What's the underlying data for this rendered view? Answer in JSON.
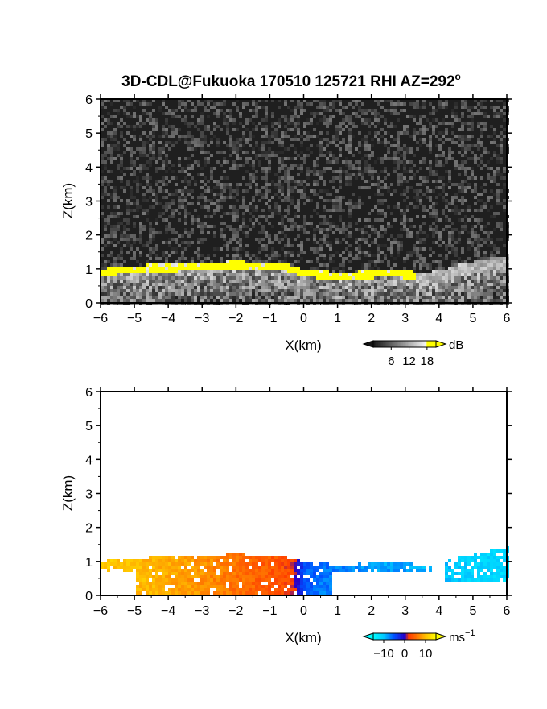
{
  "title_main": "3D-CDL@Fukuoka 170510 125721 RHI AZ=292",
  "title_sup": "o",
  "colors": {
    "background": "#1f1f1f",
    "yellow": "#ffff00",
    "axis": "#000000"
  },
  "chart_data": [
    {
      "type": "heatmap",
      "panel": "snr",
      "xlabel": "X(km)",
      "ylabel": "Z(km)",
      "xlim": [
        -6,
        6
      ],
      "ylim": [
        0,
        6
      ],
      "xticks": [
        "−6",
        "−5",
        "−4",
        "−3",
        "−2",
        "−1",
        "0",
        "1",
        "2",
        "3",
        "4",
        "5",
        "6"
      ],
      "yticks": [
        "0",
        "1",
        "2",
        "3",
        "4",
        "5",
        "6"
      ],
      "grid": false,
      "colorbar": {
        "unit": "dB",
        "ticks": [
          "6",
          "12",
          "18"
        ],
        "tick_values": [
          6,
          12,
          18
        ],
        "range": [
          0,
          21
        ]
      },
      "layer_top_km": {
        "x": [
          -6,
          -5.5,
          -5,
          -4.5,
          -4,
          -3.5,
          -3,
          -2.5,
          -2,
          -1.5,
          -1,
          -0.5,
          0,
          0.5,
          1,
          1.5,
          2,
          2.5,
          3,
          3.5,
          4,
          4.5,
          5,
          5.5,
          6
        ],
        "z": [
          1.0,
          1.05,
          1.1,
          1.12,
          1.12,
          1.15,
          1.18,
          1.2,
          1.22,
          1.2,
          1.18,
          1.15,
          0.98,
          0.95,
          0.9,
          0.92,
          0.95,
          0.98,
          0.95,
          0.88,
          0.95,
          1.1,
          1.2,
          1.3,
          1.4
        ]
      }
    },
    {
      "type": "heatmap",
      "panel": "doppler_velocity",
      "xlabel": "X(km)",
      "ylabel": "Z(km)",
      "xlim": [
        -6,
        6
      ],
      "ylim": [
        0,
        6
      ],
      "xticks": [
        "−6",
        "−5",
        "−4",
        "−3",
        "−2",
        "−1",
        "0",
        "1",
        "2",
        "3",
        "4",
        "5",
        "6"
      ],
      "yticks": [
        "0",
        "1",
        "2",
        "3",
        "4",
        "5",
        "6"
      ],
      "grid": false,
      "colorbar": {
        "unit": "ms",
        "unit_sup": "−1",
        "ticks": [
          "−10",
          "0",
          "10"
        ],
        "tick_values": [
          -10,
          0,
          10
        ],
        "range": [
          -15,
          15
        ]
      },
      "velocity_profile_ms": {
        "x": [
          -6,
          -5,
          -4,
          -3,
          -2,
          -1,
          -0.3,
          0,
          0.5,
          1,
          2,
          3,
          4,
          5,
          6
        ],
        "v": [
          11,
          10,
          9,
          7.5,
          5.5,
          4,
          2.5,
          -5,
          -6.5,
          -7,
          -8,
          -8.5,
          -10,
          -11,
          -11.5
        ]
      }
    }
  ]
}
